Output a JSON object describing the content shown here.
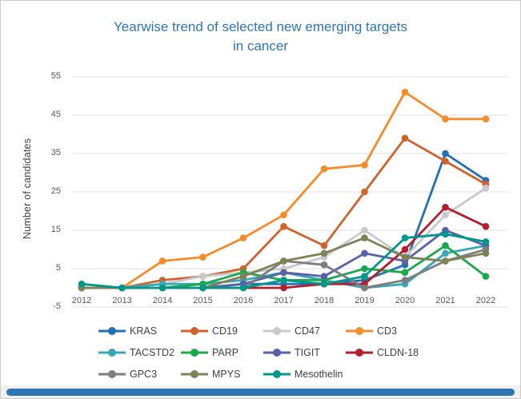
{
  "page": {
    "title_color": "#2e75b6",
    "bottom_bar_color": "#2e75b5"
  },
  "chart_data": {
    "type": "line",
    "title_line1": "Yearwise trend of selected new emerging targets",
    "title_line2": "in cancer",
    "ylabel": "Number of candidates",
    "xlabel": "",
    "categories": [
      "2012",
      "2013",
      "2014",
      "2015",
      "2016",
      "2017",
      "2018",
      "2019",
      "2020",
      "2021",
      "2022"
    ],
    "ylim": [
      -5,
      55
    ],
    "yticks": [
      55,
      45,
      35,
      25,
      15,
      5,
      -5
    ],
    "grid": "horizontal",
    "gridline_color": "#e2e2e2",
    "legend_position": "bottom",
    "legend_rows": [
      4,
      4,
      3
    ],
    "series": [
      {
        "name": "KRAS",
        "color": "#2271b2",
        "values": [
          0,
          0,
          0,
          0,
          1,
          1,
          1,
          2,
          6,
          35,
          28
        ]
      },
      {
        "name": "CD19",
        "color": "#d0632c",
        "values": [
          0,
          0,
          2,
          3,
          5,
          16,
          11,
          25,
          39,
          33,
          27
        ]
      },
      {
        "name": "CD47",
        "color": "#c8c9cb",
        "values": [
          0,
          0,
          1,
          3,
          4,
          5,
          8,
          15,
          8,
          19,
          26
        ]
      },
      {
        "name": "CD3",
        "color": "#f68c29",
        "values": [
          0,
          0,
          7,
          8,
          13,
          19,
          31,
          32,
          51,
          44,
          44
        ]
      },
      {
        "name": "TACSTD2",
        "color": "#38a8b8",
        "values": [
          0,
          0,
          1,
          1,
          2,
          4,
          2,
          0,
          1,
          9,
          11
        ]
      },
      {
        "name": "PARP",
        "color": "#1ca84d",
        "values": [
          0,
          0,
          0,
          1,
          4,
          2,
          2,
          5,
          4,
          11,
          3
        ]
      },
      {
        "name": "TIGIT",
        "color": "#5a61a9",
        "values": [
          0,
          0,
          0,
          0,
          1,
          4,
          3,
          9,
          7,
          15,
          11
        ]
      },
      {
        "name": "CLDN-18",
        "color": "#b41f2e",
        "values": [
          0,
          0,
          0,
          0,
          0,
          0,
          1,
          1,
          10,
          21,
          16
        ]
      },
      {
        "name": "GPC3",
        "color": "#7e7e80",
        "values": [
          0,
          0,
          0,
          0,
          0,
          7,
          6,
          0,
          2,
          7,
          10
        ]
      },
      {
        "name": "MPYS",
        "color": "#7f8157",
        "values": [
          0,
          0,
          0,
          0,
          3,
          7,
          9,
          13,
          8,
          7,
          9
        ]
      },
      {
        "name": "Mesothelin",
        "color": "#00988a",
        "values": [
          1,
          0,
          0,
          0,
          0,
          2,
          1,
          3,
          13,
          14,
          12
        ]
      }
    ]
  }
}
